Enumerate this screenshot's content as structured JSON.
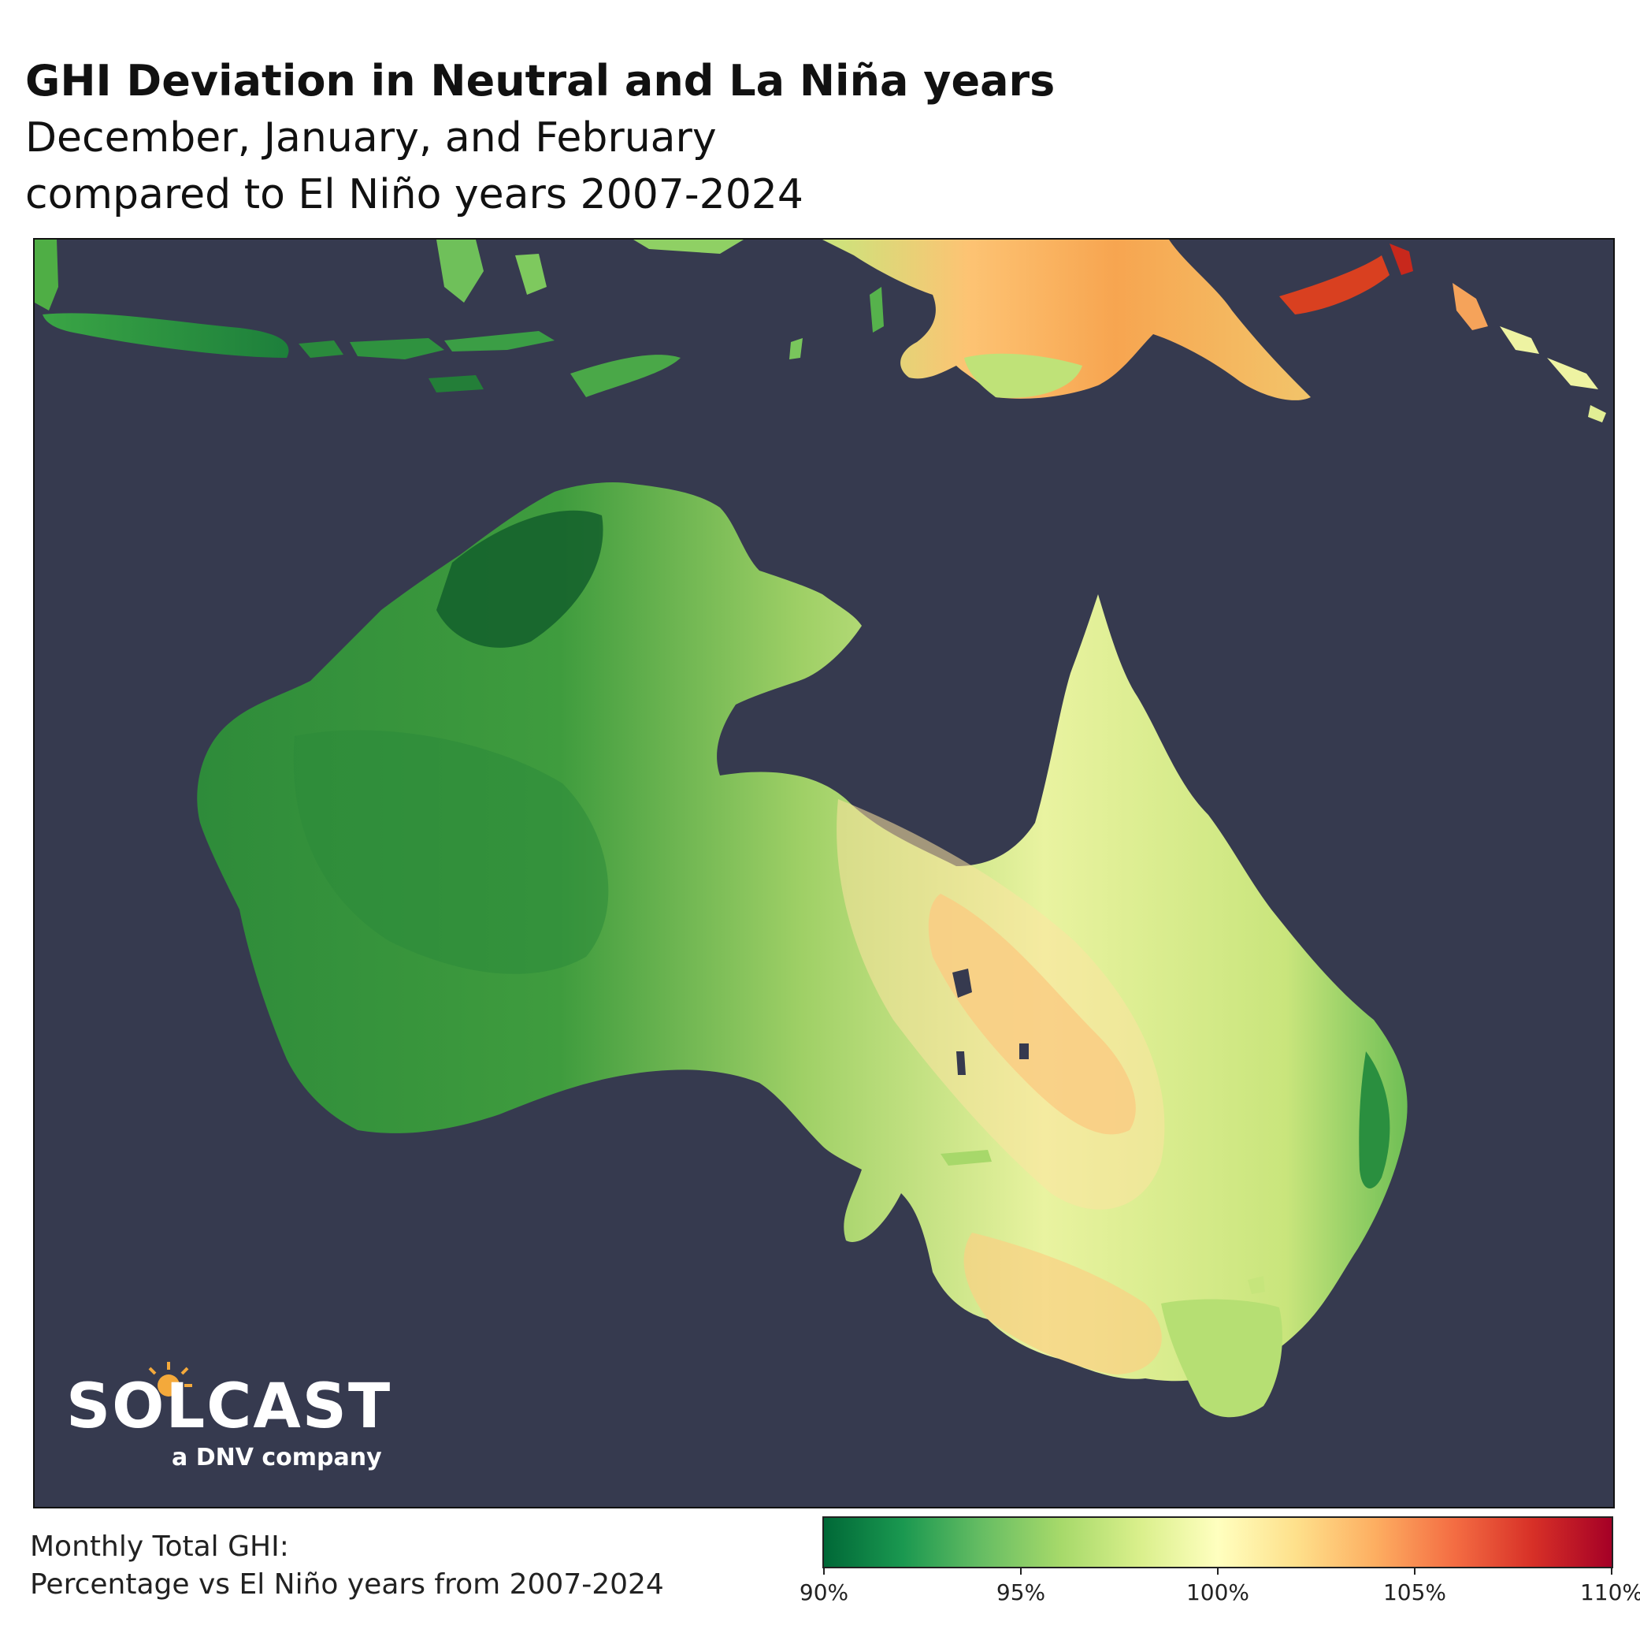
{
  "title": "GHI Deviation in Neutral and La Niña years",
  "subtitle_line1": "December, January, and February",
  "subtitle_line2": "compared to El Niño years 2007-2024",
  "map": {
    "region": "Australia, Papua New Guinea and Indonesia",
    "ocean_color": "#363a4f"
  },
  "logo": {
    "wordmark": "SOLCAST",
    "tagline": "a DNV company",
    "sun_color": "#f4a93b"
  },
  "legend": {
    "label_line1": "Monthly Total GHI:",
    "label_line2": "Percentage vs El Niño years from 2007-2024",
    "ticks": [
      "90%",
      "95%",
      "100%",
      "105%",
      "110%"
    ],
    "colors": [
      "#006837",
      "#1a9850",
      "#66bd63",
      "#a6d96a",
      "#d9ef8b",
      "#ffffbf",
      "#fee08b",
      "#fdae61",
      "#f46d43",
      "#d73027",
      "#a50026"
    ]
  }
}
